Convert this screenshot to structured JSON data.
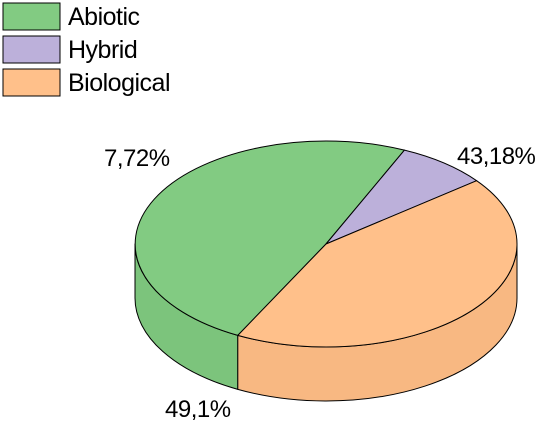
{
  "chart_data": {
    "type": "pie",
    "style": "3d",
    "legend_position": "top-left",
    "slices": [
      {
        "label": "Abiotic",
        "value": 49.1,
        "value_label": "49,1%",
        "color": "#82CB82",
        "side_color": "#7CC47C"
      },
      {
        "label": "Hybrid",
        "value": 7.72,
        "value_label": "7,72%",
        "color": "#BCB0DA",
        "side_color": "#B3A6D2"
      },
      {
        "label": "Biological",
        "value": 43.18,
        "value_label": "43,18%",
        "color": "#FFC08A",
        "side_color": "#F8B882"
      }
    ]
  }
}
